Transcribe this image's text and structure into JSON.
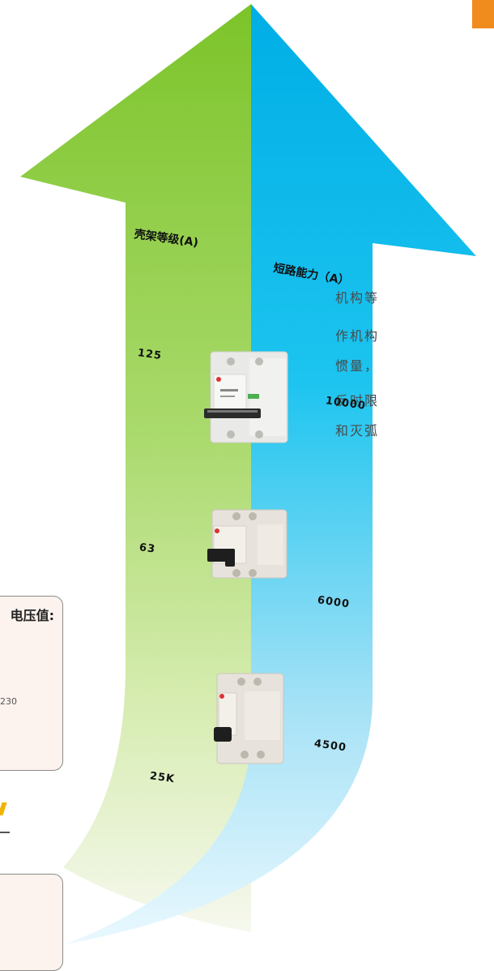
{
  "arrows": {
    "left_color_top": "#7cc42a",
    "left_color_bottom": "#f6f8ee",
    "right_color_top": "#00aee6",
    "right_color_bottom": "#eaf8fe"
  },
  "left_axis": {
    "label": "壳架等级(A)",
    "values": [
      "125",
      "63",
      "25K"
    ]
  },
  "right_axis": {
    "label": "短路能力（A）",
    "values": [
      "10000",
      "6000",
      "4500"
    ]
  },
  "side_text_lines": [
    "机构等",
    "作机构",
    "惯量，",
    "反时限",
    "和灭弧"
  ],
  "voltage_card": {
    "title": "电压值:",
    "value": "230"
  },
  "accent_color": "#f08c1e",
  "breakers": [
    {
      "poles": 2,
      "color": "#e8e8e6"
    },
    {
      "poles": 2,
      "color": "#e6e2db"
    },
    {
      "poles": 1,
      "color": "#e6e2db"
    }
  ]
}
